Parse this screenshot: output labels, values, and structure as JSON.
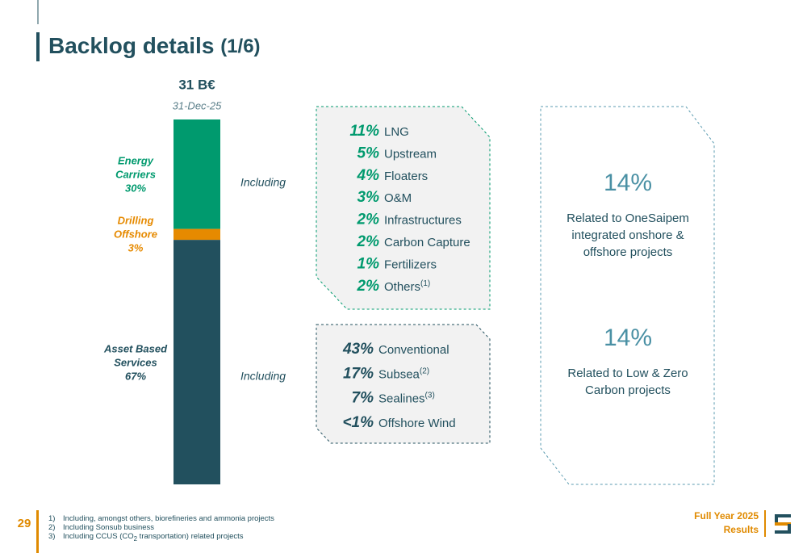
{
  "header": {
    "title": "Backlog details",
    "part": "(1/6)"
  },
  "chart_data": {
    "type": "stacked_bar",
    "title": "31 B€",
    "categories": [
      "31-Dec-25"
    ],
    "series": [
      {
        "name": "Energy Carriers",
        "color": "#009a6e",
        "values": [
          30
        ],
        "value_labels": [
          "30%"
        ]
      },
      {
        "name": "Drilling Offshore",
        "color": "#e68a00",
        "values": [
          3
        ],
        "value_labels": [
          "3%"
        ]
      },
      {
        "name": "Asset Based Services",
        "color": "#22505e",
        "values": [
          67
        ],
        "value_labels": [
          "67%"
        ]
      }
    ]
  },
  "annotations": [
    "Including",
    "Including"
  ],
  "energy_breakdown": [
    {
      "share": "11%",
      "label": "LNG"
    },
    {
      "share": "5%",
      "label": "Upstream"
    },
    {
      "share": "4%",
      "label": "Floaters"
    },
    {
      "share": "3%",
      "label": "O&M"
    },
    {
      "share": "2%",
      "label": "Infrastructures"
    },
    {
      "share": "2%",
      "label": "Carbon Capture"
    },
    {
      "share": "1%",
      "label": "Fertilizers"
    },
    {
      "share": "2%",
      "label": "Others",
      "note": "(1)"
    }
  ],
  "asset_breakdown": [
    {
      "share": "43%",
      "label": "Conventional"
    },
    {
      "share": "17%",
      "label": "Subsea",
      "note": "(2)"
    },
    {
      "share": "7%",
      "label": "Sealines",
      "note": "(3)"
    },
    {
      "share": "<1%",
      "label": "Offshore Wind"
    }
  ],
  "highlights": [
    {
      "value": "14%",
      "text": "Related to OneSaipem integrated onshore & offshore projects"
    },
    {
      "value": "14%",
      "text": "Related to Low & Zero Carbon projects"
    }
  ],
  "footer": {
    "page": "29",
    "report": [
      "Full Year 2025",
      "Results"
    ],
    "notes": [
      {
        "num": "1)",
        "text": "Including, amongst others, biorefineries and ammonia projects"
      },
      {
        "num": "2)",
        "text": "Including Sonsub business"
      },
      {
        "num": "3)",
        "text": "Including CCUS (CO",
        "sub": "2",
        "text_after": " transportation) related projects"
      }
    ]
  }
}
